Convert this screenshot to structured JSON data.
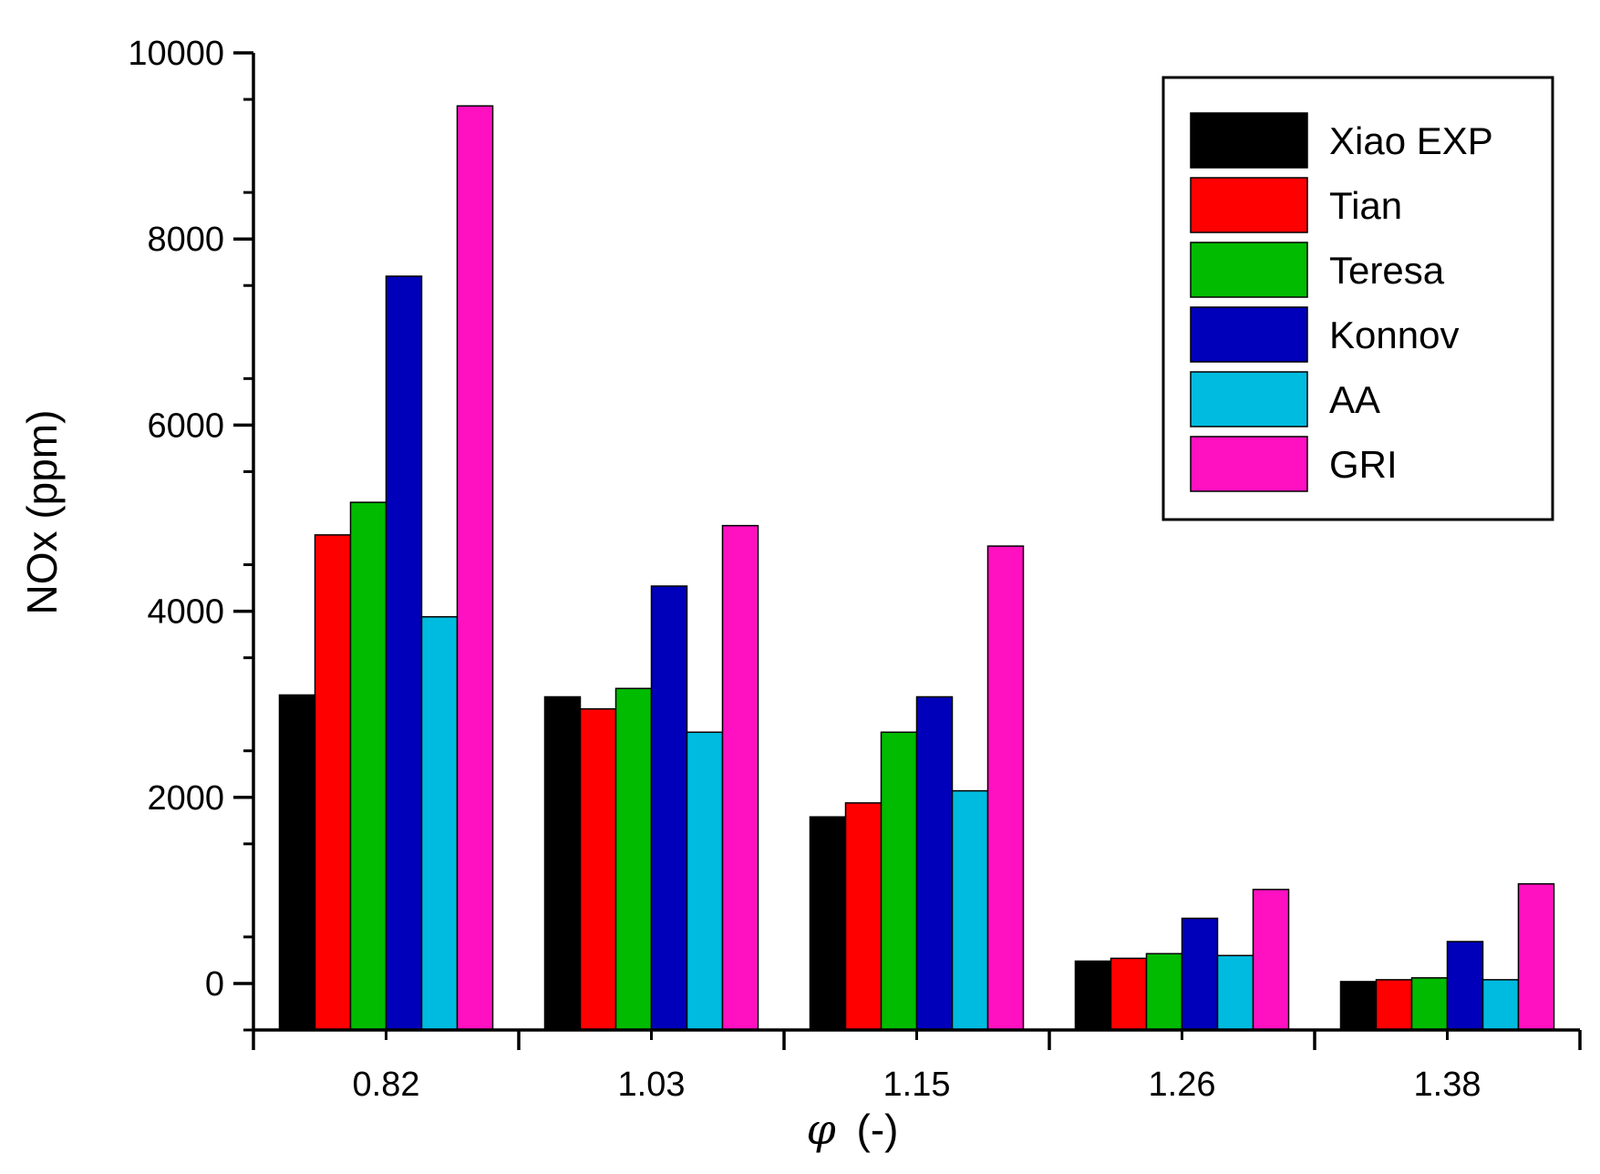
{
  "chart_data": {
    "type": "bar",
    "title": "",
    "xlabel": "(-)",
    "xlabel_symbol": "φ",
    "ylabel": "NOx (ppm)",
    "ylim": [
      -500,
      10000
    ],
    "yticks": [
      0,
      2000,
      4000,
      6000,
      8000,
      10000
    ],
    "ytick_labels": [
      "0",
      "2000",
      "4000",
      "6000",
      "8000",
      "10000"
    ],
    "categories": [
      "0.82",
      "1.03",
      "1.15",
      "1.26",
      "1.38"
    ],
    "legend_position": "top-right",
    "series": [
      {
        "name": "Xiao EXP",
        "color": "#000000",
        "values": [
          3100,
          3080,
          1790,
          240,
          20
        ]
      },
      {
        "name": "Tian",
        "color": "#ff0000",
        "values": [
          4820,
          2950,
          1940,
          270,
          40
        ]
      },
      {
        "name": "Teresa",
        "color": "#00bb00",
        "values": [
          5170,
          3170,
          2700,
          320,
          60
        ]
      },
      {
        "name": "Konnov",
        "color": "#0000bb",
        "values": [
          7600,
          4270,
          3080,
          700,
          450
        ]
      },
      {
        "name": "AA",
        "color": "#00bbe0",
        "values": [
          3940,
          2700,
          2070,
          300,
          40
        ]
      },
      {
        "name": "GRI",
        "color": "#ff10c0",
        "values": [
          9430,
          4920,
          4700,
          1010,
          1070
        ]
      }
    ]
  }
}
